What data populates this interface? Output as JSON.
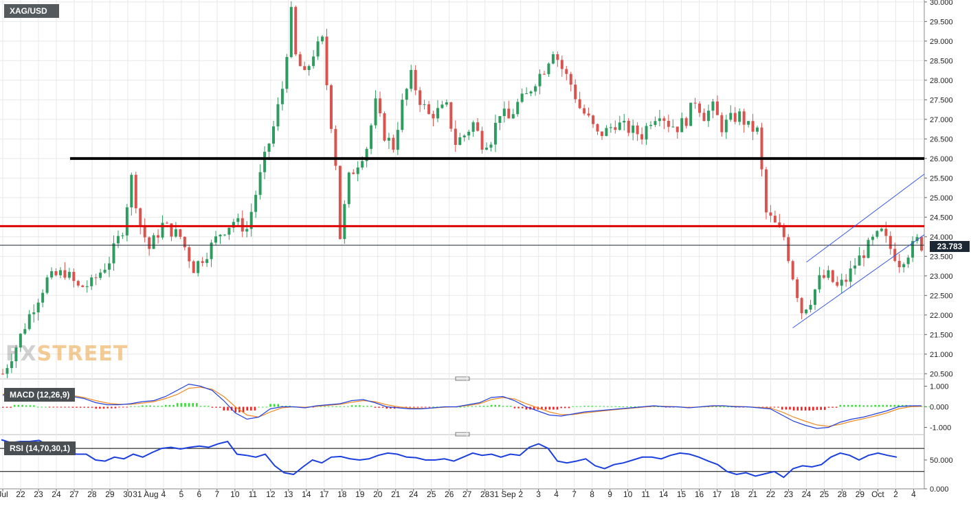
{
  "symbol": "XAG/USD",
  "last_price_label": "23.783",
  "watermark": {
    "part1": "FX",
    "part2": "STREET"
  },
  "colors": {
    "up": "#2e9b5f",
    "down": "#d9534f",
    "resistance_upper": "#000000",
    "resistance_lower": "#e00000",
    "channel": "#3b57e0",
    "macd_line": "#2040e0",
    "signal_line": "#f08a24",
    "hist_pos": "#33dd33",
    "hist_neg": "#ee2222",
    "rsi_line": "#1a3fe0"
  },
  "chart_data": [
    {
      "type": "candlestick",
      "title": "XAG/USD",
      "ylim": [
        20.4,
        30.05
      ],
      "y_ticks": [
        "30.000",
        "29.500",
        "29.000",
        "28.500",
        "28.000",
        "27.500",
        "27.000",
        "26.500",
        "26.000",
        "25.500",
        "25.000",
        "24.500",
        "24.000",
        "23.500",
        "23.000",
        "22.500",
        "22.000",
        "21.500",
        "21.000",
        "20.500"
      ],
      "x_tick_labels": [
        "Jul",
        "22",
        "23",
        "24",
        "27",
        "28",
        "29",
        "30",
        "31 Aug",
        "4",
        "5",
        "6",
        "7",
        "10",
        "11",
        "12",
        "13",
        "14",
        "17",
        "18",
        "19",
        "20",
        "21",
        "24",
        "25",
        "26",
        "27",
        "28",
        "31 Sep",
        "2",
        "3",
        "4",
        "7",
        "8",
        "9",
        "10",
        "11",
        "14",
        "15",
        "16",
        "17",
        "18",
        "21",
        "22",
        "23",
        "24",
        "25",
        "28",
        "29",
        "Oct",
        "2",
        "4"
      ],
      "horizontal_lines": [
        {
          "name": "upper-level",
          "value": 26.0
        },
        {
          "name": "lower-level",
          "value": 24.27
        },
        {
          "name": "last-price",
          "value": 23.783
        }
      ],
      "channel": {
        "upper": [
          [
            "24",
            23.35
          ],
          [
            "4",
            25.6
          ]
        ],
        "lower": [
          [
            "23",
            21.67
          ],
          [
            "4",
            24.05
          ]
        ]
      },
      "path": [
        [
          0,
          20.5
        ],
        [
          3,
          21.2
        ],
        [
          6,
          22.0
        ],
        [
          10,
          22.9
        ],
        [
          14,
          23.1
        ],
        [
          17,
          22.7
        ],
        [
          20,
          22.8
        ],
        [
          24,
          23.4
        ],
        [
          27,
          24.2
        ],
        [
          29,
          25.5
        ],
        [
          31,
          24.3
        ],
        [
          33,
          23.7
        ],
        [
          36,
          24.3
        ],
        [
          40,
          24.0
        ],
        [
          43,
          23.2
        ],
        [
          46,
          23.6
        ],
        [
          49,
          24.1
        ],
        [
          52,
          24.4
        ],
        [
          55,
          24.2
        ],
        [
          57,
          25.1
        ],
        [
          59,
          26.0
        ],
        [
          61,
          26.8
        ],
        [
          63,
          27.8
        ],
        [
          65,
          29.7
        ],
        [
          66,
          28.6
        ],
        [
          68,
          28.1
        ],
        [
          70,
          28.7
        ],
        [
          72,
          29.0
        ],
        [
          73,
          27.9
        ],
        [
          75,
          25.9
        ],
        [
          76,
          24.0
        ],
        [
          78,
          25.5
        ],
        [
          80,
          25.9
        ],
        [
          82,
          26.3
        ],
        [
          84,
          27.4
        ],
        [
          86,
          26.6
        ],
        [
          88,
          26.3
        ],
        [
          90,
          27.4
        ],
        [
          92,
          28.1
        ],
        [
          94,
          27.5
        ],
        [
          96,
          27.1
        ],
        [
          98,
          27.2
        ],
        [
          100,
          27.3
        ],
        [
          102,
          26.4
        ],
        [
          104,
          26.6
        ],
        [
          106,
          26.9
        ],
        [
          108,
          26.4
        ],
        [
          110,
          26.5
        ],
        [
          112,
          27.2
        ],
        [
          114,
          27.0
        ],
        [
          116,
          27.4
        ],
        [
          118,
          27.6
        ],
        [
          120,
          28.0
        ],
        [
          122,
          28.3
        ],
        [
          124,
          28.8
        ],
        [
          126,
          28.3
        ],
        [
          128,
          27.9
        ],
        [
          130,
          27.3
        ],
        [
          132,
          27.0
        ],
        [
          134,
          26.6
        ],
        [
          136,
          26.7
        ],
        [
          138,
          26.9
        ],
        [
          140,
          26.8
        ],
        [
          142,
          26.7
        ],
        [
          144,
          26.6
        ],
        [
          146,
          27.0
        ],
        [
          148,
          27.2
        ],
        [
          150,
          26.9
        ],
        [
          152,
          26.8
        ],
        [
          154,
          27.0
        ],
        [
          156,
          27.5
        ],
        [
          158,
          27.1
        ],
        [
          160,
          27.3
        ],
        [
          162,
          26.8
        ],
        [
          164,
          27.0
        ],
        [
          166,
          27.1
        ],
        [
          168,
          26.8
        ],
        [
          170,
          26.7
        ],
        [
          172,
          24.6
        ],
        [
          174,
          24.3
        ],
        [
          176,
          24.0
        ],
        [
          178,
          23.0
        ],
        [
          180,
          22.1
        ],
        [
          182,
          22.4
        ],
        [
          184,
          22.9
        ],
        [
          186,
          23.0
        ],
        [
          188,
          22.7
        ],
        [
          190,
          22.9
        ],
        [
          192,
          23.3
        ],
        [
          194,
          23.6
        ],
        [
          196,
          23.9
        ],
        [
          198,
          24.1
        ],
        [
          200,
          23.7
        ],
        [
          202,
          23.35
        ],
        [
          204,
          23.6
        ],
        [
          206,
          23.9
        ],
        [
          207,
          23.78
        ]
      ]
    },
    {
      "type": "line",
      "title": "MACD (12,26,9)",
      "ylim": [
        -1.15,
        1.15
      ],
      "y_ticks": [
        "1.000",
        "0.000",
        "-1.000"
      ],
      "series": [
        {
          "key": "macd",
          "values": [
            0.55,
            0.85,
            0.9,
            0.8,
            0.7,
            0.6,
            0.5,
            0.4,
            0.2,
            0.1,
            0.1,
            0.15,
            0.25,
            0.3,
            0.5,
            0.8,
            1.1,
            1.0,
            0.8,
            0.3,
            -0.3,
            -0.6,
            -0.5,
            -0.1,
            0.0,
            0.0,
            -0.05,
            0.05,
            0.1,
            0.15,
            0.3,
            0.35,
            0.2,
            0.0,
            -0.05,
            -0.1,
            -0.1,
            -0.05,
            0.0,
            0.0,
            0.1,
            0.2,
            0.45,
            0.5,
            0.3,
            0.0,
            -0.2,
            -0.4,
            -0.45,
            -0.35,
            -0.25,
            -0.2,
            -0.15,
            -0.1,
            -0.05,
            0.0,
            0.05,
            0.0,
            0.0,
            -0.05,
            0.0,
            0.05,
            0.05,
            0.0,
            0.0,
            -0.05,
            -0.1,
            -0.4,
            -0.7,
            -0.9,
            -1.05,
            -1.0,
            -0.75,
            -0.6,
            -0.5,
            -0.35,
            -0.2,
            0.0,
            0.05,
            0.05
          ]
        },
        {
          "key": "signal",
          "values": [
            0.6,
            0.75,
            0.82,
            0.8,
            0.72,
            0.64,
            0.55,
            0.45,
            0.3,
            0.18,
            0.12,
            0.12,
            0.18,
            0.25,
            0.4,
            0.6,
            0.9,
            0.95,
            0.85,
            0.5,
            0.0,
            -0.4,
            -0.5,
            -0.25,
            -0.05,
            0.0,
            -0.02,
            0.02,
            0.07,
            0.12,
            0.22,
            0.3,
            0.25,
            0.1,
            0.0,
            -0.06,
            -0.08,
            -0.06,
            -0.02,
            0.0,
            0.06,
            0.15,
            0.35,
            0.45,
            0.38,
            0.15,
            -0.05,
            -0.25,
            -0.38,
            -0.38,
            -0.3,
            -0.24,
            -0.18,
            -0.12,
            -0.07,
            -0.02,
            0.03,
            0.02,
            0.0,
            -0.03,
            -0.01,
            0.03,
            0.04,
            0.02,
            0.0,
            -0.03,
            -0.06,
            -0.25,
            -0.5,
            -0.7,
            -0.88,
            -0.95,
            -0.85,
            -0.7,
            -0.58,
            -0.45,
            -0.3,
            -0.1,
            0.0,
            0.02
          ]
        }
      ]
    },
    {
      "type": "line",
      "title": "RSI (14,70,30,1)",
      "ylim": [
        0,
        88
      ],
      "y_ticks": [
        "50.000",
        "0.000"
      ],
      "levels": [
        70,
        30
      ],
      "values": [
        85,
        80,
        82,
        82,
        84,
        75,
        60,
        62,
        60,
        60,
        50,
        48,
        55,
        52,
        60,
        55,
        63,
        70,
        72,
        69,
        72,
        74,
        72,
        78,
        82,
        60,
        58,
        55,
        60,
        40,
        28,
        25,
        38,
        50,
        45,
        55,
        56,
        52,
        50,
        52,
        58,
        62,
        60,
        55,
        54,
        50,
        50,
        52,
        48,
        55,
        62,
        58,
        60,
        55,
        60,
        58,
        72,
        78,
        70,
        48,
        45,
        48,
        52,
        40,
        35,
        42,
        45,
        50,
        55,
        55,
        52,
        58,
        62,
        60,
        55,
        48,
        42,
        30,
        25,
        28,
        22,
        26,
        30,
        20,
        35,
        40,
        38,
        42,
        55,
        62,
        58,
        50,
        58,
        62,
        58,
        55
      ]
    }
  ]
}
